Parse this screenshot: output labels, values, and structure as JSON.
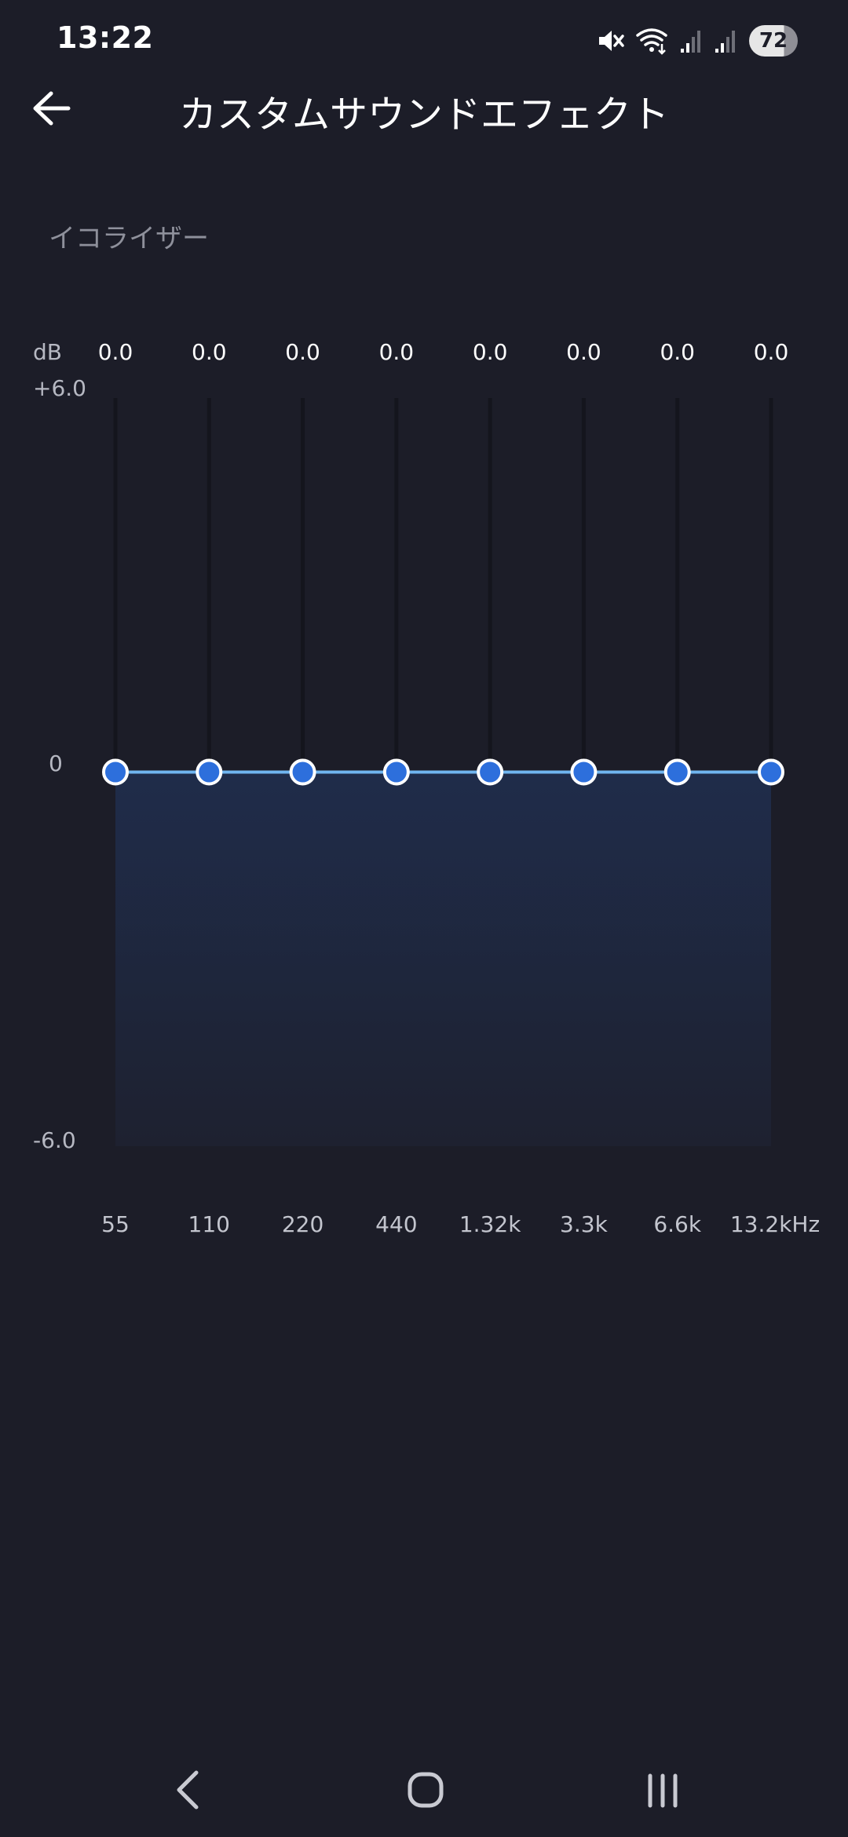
{
  "status_bar": {
    "time": "13:22",
    "battery": "72",
    "icons": [
      "mute-icon",
      "wifi-icon",
      "signal-icon",
      "signal-icon",
      "battery-icon"
    ]
  },
  "header": {
    "back_icon": "arrow-left-icon",
    "title": "カスタムサウンドエフェクト"
  },
  "equalizer": {
    "section_label": "イコライザー",
    "unit_label": "dB",
    "y_max_label": "+6.0",
    "y_mid_label": "0",
    "y_min_label": "-6.0",
    "colors": {
      "knob": "#2d6fdc",
      "line": "#6fb5f0",
      "fill": "#1f2a45"
    }
  },
  "chart_data": {
    "type": "line",
    "title": "",
    "xlabel": "",
    "ylabel": "dB",
    "categories": [
      "55",
      "110",
      "220",
      "440",
      "1.32k",
      "3.3k",
      "6.6k",
      "13.2kHz"
    ],
    "values": [
      0.0,
      0.0,
      0.0,
      0.0,
      0.0,
      0.0,
      0.0,
      0.0
    ],
    "value_labels": [
      "0.0",
      "0.0",
      "0.0",
      "0.0",
      "0.0",
      "0.0",
      "0.0",
      "0.0"
    ],
    "ylim": [
      -6.0,
      6.0
    ],
    "yticks": [
      "+6.0",
      "0",
      "-6.0"
    ]
  },
  "nav_bar": {
    "back_icon": "nav-back-icon",
    "home_icon": "nav-home-icon",
    "recents_icon": "nav-recents-icon"
  }
}
